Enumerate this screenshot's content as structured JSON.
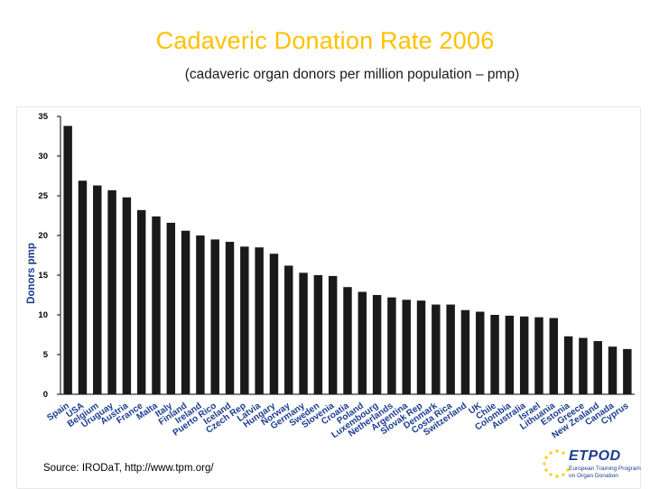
{
  "title": "Cadaveric Donation Rate 2006",
  "subtitle": "(cadaveric organ donors per million population – pmp)",
  "source": "Source: IRODaT, http://www.tpm.org/",
  "logo": {
    "name": "ETPOD",
    "line1": "European Training Program",
    "line2": "on Organ Donation"
  },
  "colors": {
    "title": "#ffc000",
    "bar": "#1a1a1a",
    "axis": "#000000"
  },
  "chart_data": {
    "type": "bar",
    "title": "Cadaveric Donation Rate 2006",
    "xlabel": "",
    "ylabel": "Donors pmp",
    "ylim": [
      0,
      35
    ],
    "yticks": [
      0,
      5,
      10,
      15,
      20,
      25,
      30,
      35
    ],
    "grid": false,
    "categories": [
      "Spain",
      "USA",
      "Belgium",
      "Uruguay",
      "Austria",
      "France",
      "Malta",
      "Italy",
      "Finland",
      "Ireland",
      "Puerto Rico",
      "Iceland",
      "Czech Rep",
      "Latvia",
      "Hungary",
      "Norway",
      "Germany",
      "Sweden",
      "Slovenia",
      "Croatia",
      "Poland",
      "Luxembourg",
      "Netherlands",
      "Argentina",
      "Slovak Rep",
      "Denmark",
      "Costa Rica",
      "Switzerland",
      "UK",
      "Chile",
      "Colombia",
      "Australia",
      "Israel",
      "Lithuania",
      "Estonia",
      "Greece",
      "New Zealand",
      "Canada",
      "Cyprus"
    ],
    "values": [
      33.8,
      26.9,
      26.3,
      25.7,
      24.8,
      23.2,
      22.4,
      21.6,
      20.6,
      20.0,
      19.5,
      19.2,
      18.6,
      18.5,
      17.7,
      16.2,
      15.3,
      15.0,
      14.9,
      13.5,
      12.9,
      12.5,
      12.2,
      11.9,
      11.8,
      11.3,
      11.3,
      10.6,
      10.4,
      10.0,
      9.9,
      9.8,
      9.7,
      9.6,
      7.3,
      7.1,
      6.7,
      6.0,
      5.7
    ]
  }
}
